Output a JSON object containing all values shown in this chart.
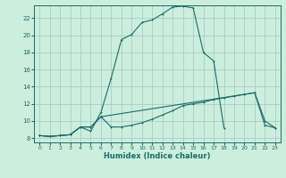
{
  "xlabel": "Humidex (Indice chaleur)",
  "background_color": "#cceedd",
  "grid_color": "#aacccc",
  "line_color": "#1a6b6b",
  "xlim": [
    -0.5,
    23.5
  ],
  "ylim": [
    7.5,
    23.5
  ],
  "xticks": [
    0,
    1,
    2,
    3,
    4,
    5,
    6,
    7,
    8,
    9,
    10,
    11,
    12,
    13,
    14,
    15,
    16,
    17,
    18,
    19,
    20,
    21,
    22,
    23
  ],
  "yticks": [
    8,
    10,
    12,
    14,
    16,
    18,
    20,
    22
  ],
  "line1_x": [
    0,
    1,
    2,
    3,
    4,
    5,
    6,
    7,
    8,
    9,
    10,
    11,
    12,
    13,
    14,
    15,
    16,
    17,
    18,
    19,
    20,
    21,
    22,
    23
  ],
  "line1_y": [
    8.3,
    8.2,
    8.3,
    8.4,
    9.3,
    9.3,
    10.5,
    9.3,
    9.3,
    9.5,
    9.8,
    10.2,
    10.7,
    11.2,
    11.8,
    12.0,
    12.2,
    12.5,
    12.7,
    12.9,
    13.1,
    13.3,
    9.5,
    9.2
  ],
  "line2_x": [
    0,
    1,
    2,
    3,
    4,
    5,
    6,
    7,
    8,
    9,
    10,
    11,
    12,
    13,
    14,
    15,
    16,
    17,
    18
  ],
  "line2_y": [
    8.3,
    8.2,
    8.3,
    8.4,
    9.3,
    8.8,
    11.0,
    15.0,
    19.5,
    20.1,
    21.5,
    21.8,
    22.5,
    23.3,
    23.4,
    23.2,
    18.0,
    17.0,
    9.2
  ],
  "line3_x": [
    0,
    1,
    2,
    3,
    4,
    5,
    6,
    21,
    22,
    23
  ],
  "line3_y": [
    8.3,
    8.2,
    8.3,
    8.4,
    9.3,
    9.3,
    10.5,
    13.3,
    10.0,
    9.2
  ]
}
